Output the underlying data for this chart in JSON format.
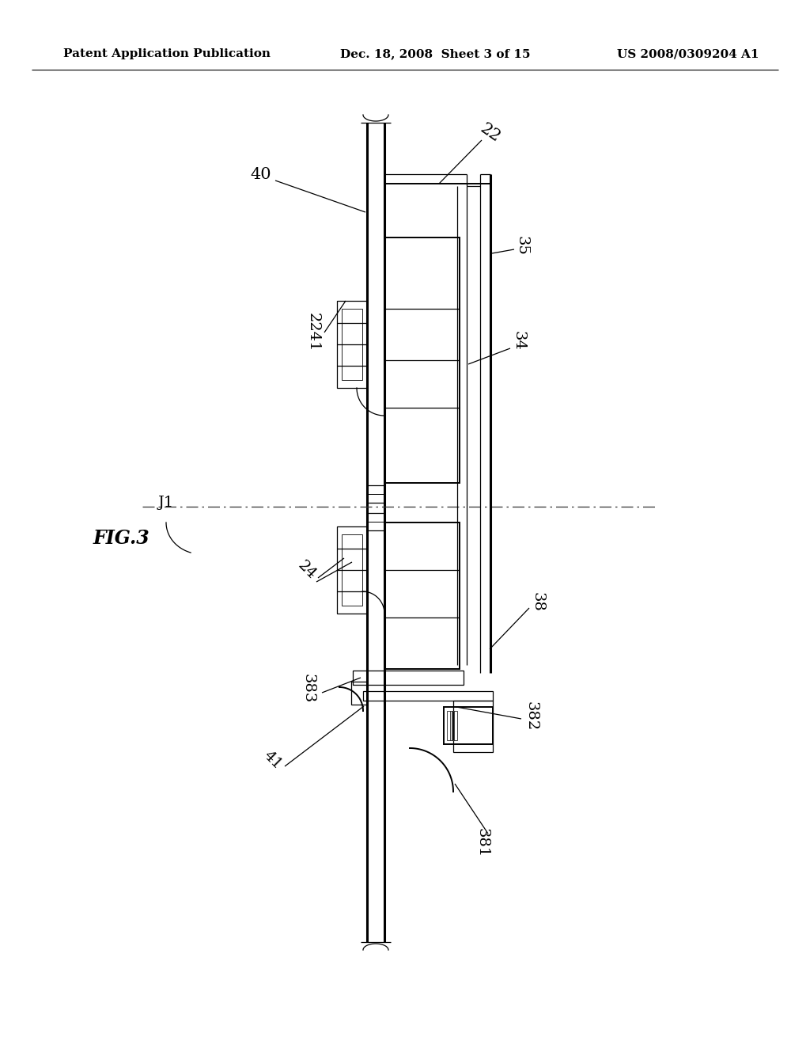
{
  "bg_color": "#ffffff",
  "header_left": "Patent Application Publication",
  "header_mid": "Dec. 18, 2008  Sheet 3 of 15",
  "header_right": "US 2008/0309204 A1",
  "fig_label": "FIG.3",
  "label_fontsize": 14,
  "header_fontsize": 11
}
